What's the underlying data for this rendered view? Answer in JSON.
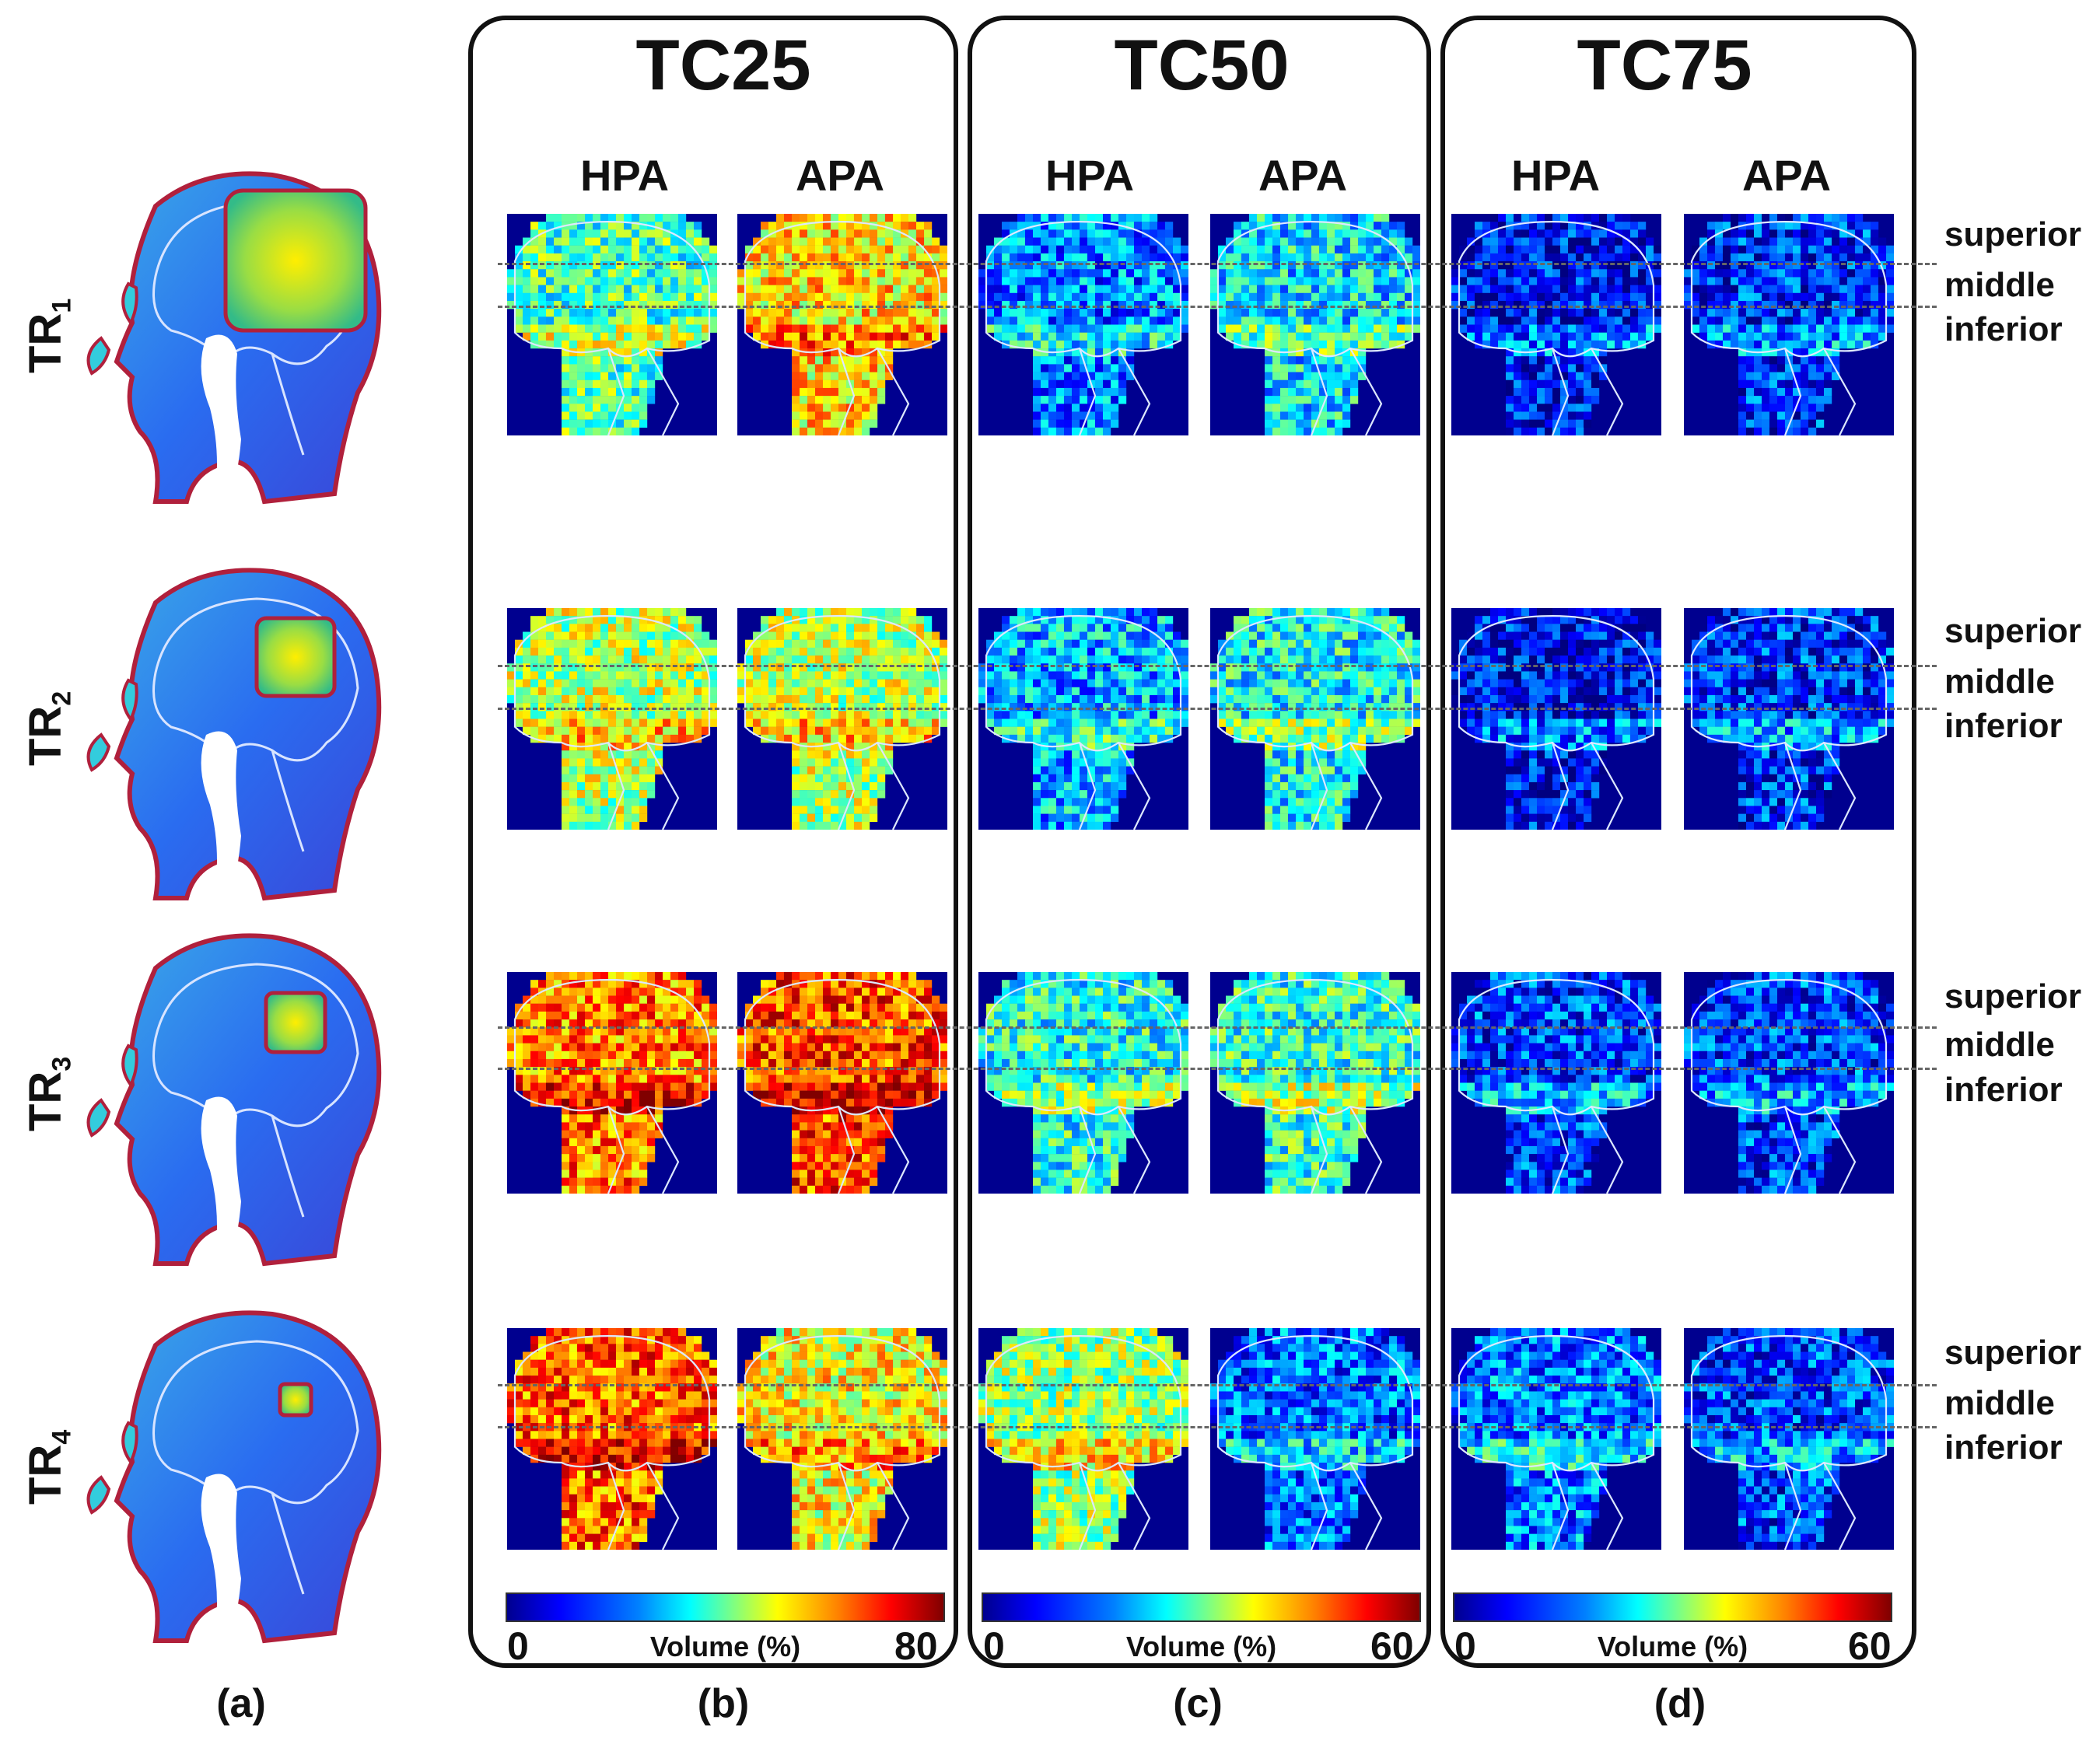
{
  "panels": [
    {
      "title": "TC25",
      "hpa": "HPA",
      "apa": "APA",
      "cbar_min": "0",
      "cbar_max": "80",
      "cbar_label": "Volume (%)",
      "sub": "(b)"
    },
    {
      "title": "TC50",
      "hpa": "HPA",
      "apa": "APA",
      "cbar_min": "0",
      "cbar_max": "60",
      "cbar_label": "Volume (%)",
      "sub": "(c)"
    },
    {
      "title": "TC75",
      "hpa": "HPA",
      "apa": "APA",
      "cbar_min": "0",
      "cbar_max": "60",
      "cbar_label": "Volume (%)",
      "sub": "(d)"
    }
  ],
  "rows": [
    {
      "label": "TR",
      "sub": "1",
      "superior": "superior",
      "middle": "middle",
      "inferior": "inferior"
    },
    {
      "label": "TR",
      "sub": "2",
      "superior": "superior",
      "middle": "middle",
      "inferior": "inferior"
    },
    {
      "label": "TR",
      "sub": "3",
      "superior": "superior",
      "middle": "middle",
      "inferior": "inferior"
    },
    {
      "label": "TR",
      "sub": "4",
      "superior": "superior",
      "middle": "middle",
      "inferior": "inferior"
    }
  ],
  "panel_a_label": "(a)",
  "colors": {
    "deep_blue": "#00008f",
    "blue": "#1a3cff",
    "cyan": "#33ccee",
    "yellow": "#ffee00",
    "orange": "#ff7a00",
    "red": "#d81000",
    "skull_outline": "#b0203c"
  }
}
